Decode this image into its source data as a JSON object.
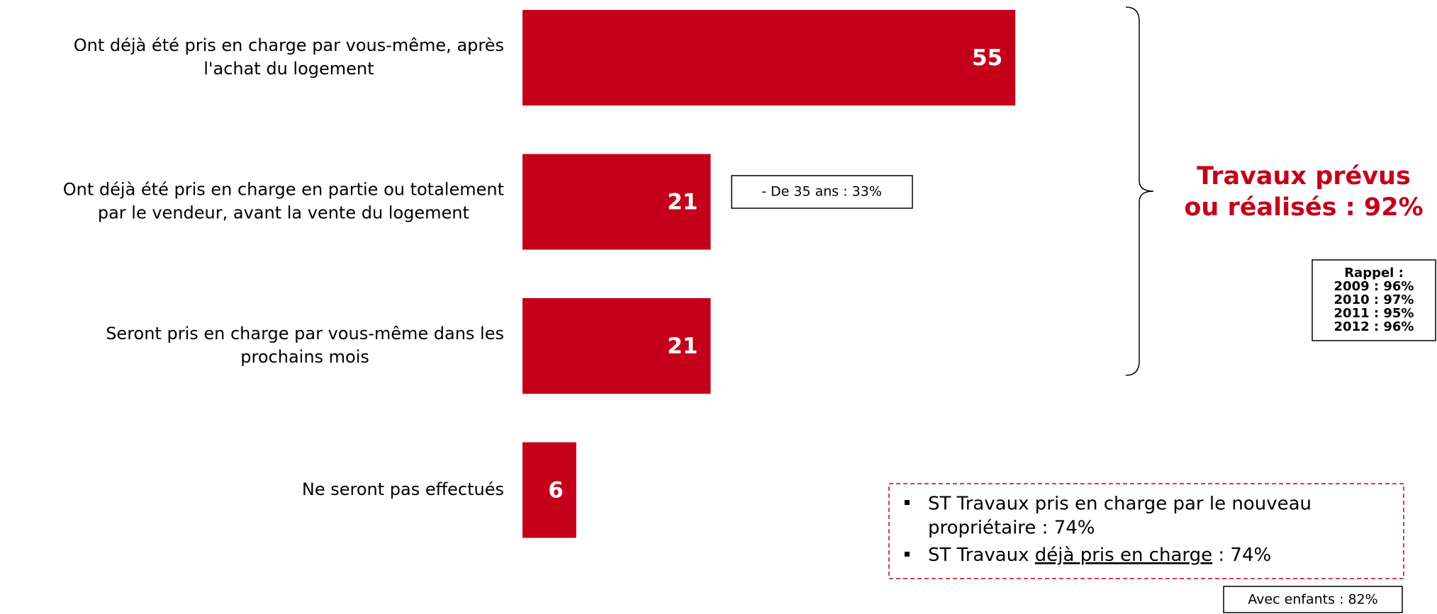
{
  "chart_data": {
    "type": "bar",
    "orientation": "horizontal",
    "categories": [
      [
        "Ont déjà été pris en charge par vous-même, après",
        "l'achat du logement"
      ],
      [
        "Ont déjà été pris en charge en partie ou totalement",
        "par le vendeur, avant la vente du logement"
      ],
      [
        "Seront pris en charge par vous-même dans les",
        "prochains mois"
      ],
      [
        "Ne seront pas effectués"
      ]
    ],
    "values": [
      55,
      21,
      21,
      6
    ],
    "color": "#c4001a",
    "xlim": [
      0,
      100
    ],
    "annotations": {
      "bar_note": "- De 35 ans : 33%",
      "total": [
        "Travaux prévus",
        "ou réalisés : 92%"
      ],
      "rappel": [
        "Rappel  :",
        "2009 : 96%",
        "2010 : 97%",
        "2011 : 95%",
        "2012 : 96%"
      ],
      "bullet1": [
        "ST Travaux pris en charge par le nouveau",
        "propriétaire : 74%"
      ],
      "bullet2": [
        "ST Travaux ",
        "déjà pris en charge",
        " : 74%"
      ],
      "children": "Avec enfants : 82%"
    }
  }
}
